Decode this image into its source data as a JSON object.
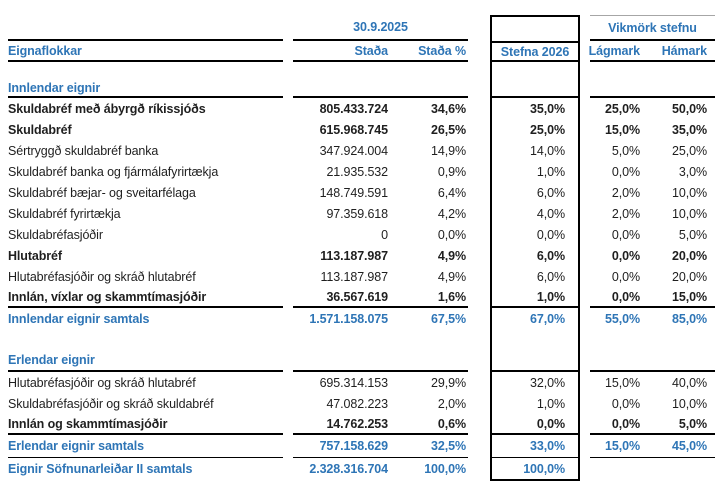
{
  "page": {
    "accent_blue": "#2E75B6",
    "text_color": "#1f1f1f",
    "background": "#ffffff"
  },
  "header": {
    "date_group": "30.9.2025",
    "vikmork_group": "Vikmörk stefnu",
    "col_eignaflokkar": "Eignaflokkar",
    "col_stada": "Staða",
    "col_stada_pct": "Staða %",
    "col_stefna": "Stefna 2026",
    "col_lagmark": "Lágmark",
    "col_hamark": "Hámark"
  },
  "sections": {
    "domestic_label": "Innlendar eignir",
    "foreign_label": "Erlendar eignir"
  },
  "rows": [
    {
      "label": "Skuldabréf með ábyrgð ríkissjóðs",
      "stada": "805.433.724",
      "pct": "34,6%",
      "stefna": "35,0%",
      "lagmark": "25,0%",
      "hamark": "50,0%"
    },
    {
      "label": "Skuldabréf",
      "stada": "615.968.745",
      "pct": "26,5%",
      "stefna": "25,0%",
      "lagmark": "15,0%",
      "hamark": "35,0%"
    },
    {
      "label": "Sértryggð skuldabréf banka",
      "stada": "347.924.004",
      "pct": "14,9%",
      "stefna": "14,0%",
      "lagmark": "5,0%",
      "hamark": "25,0%"
    },
    {
      "label": "Skuldabréf banka og fjármálafyrirtækja",
      "stada": "21.935.532",
      "pct": "0,9%",
      "stefna": "1,0%",
      "lagmark": "0,0%",
      "hamark": "3,0%"
    },
    {
      "label": "Skuldabréf bæjar- og sveitarfélaga",
      "stada": "148.749.591",
      "pct": "6,4%",
      "stefna": "6,0%",
      "lagmark": "2,0%",
      "hamark": "10,0%"
    },
    {
      "label": "Skuldabréf fyrirtækja",
      "stada": "97.359.618",
      "pct": "4,2%",
      "stefna": "4,0%",
      "lagmark": "2,0%",
      "hamark": "10,0%"
    },
    {
      "label": "Skuldabréfasjóðir",
      "stada": "0",
      "pct": "0,0%",
      "stefna": "0,0%",
      "lagmark": "0,0%",
      "hamark": "5,0%"
    },
    {
      "label": "Hlutabréf",
      "stada": "113.187.987",
      "pct": "4,9%",
      "stefna": "6,0%",
      "lagmark": "0,0%",
      "hamark": "20,0%"
    },
    {
      "label": "Hlutabréfasjóðir og skráð hlutabréf",
      "stada": "113.187.987",
      "pct": "4,9%",
      "stefna": "6,0%",
      "lagmark": "0,0%",
      "hamark": "20,0%"
    },
    {
      "label": "Innlán, víxlar og skammtímasjóðir",
      "stada": "36.567.619",
      "pct": "1,6%",
      "stefna": "1,0%",
      "lagmark": "0,0%",
      "hamark": "15,0%"
    },
    {
      "label": "Innlendar eignir samtals",
      "stada": "1.571.158.075",
      "pct": "67,5%",
      "stefna": "67,0%",
      "lagmark": "55,0%",
      "hamark": "85,0%"
    },
    {
      "label": "Hlutabréfasjóðir og skráð hlutabréf",
      "stada": "695.314.153",
      "pct": "29,9%",
      "stefna": "32,0%",
      "lagmark": "15,0%",
      "hamark": "40,0%"
    },
    {
      "label": "Skuldabréfasjóðir og skráð skuldabréf",
      "stada": "47.082.223",
      "pct": "2,0%",
      "stefna": "1,0%",
      "lagmark": "0,0%",
      "hamark": "10,0%"
    },
    {
      "label": "Innlán og skammtímasjóðir",
      "stada": "14.762.253",
      "pct": "0,6%",
      "stefna": "0,0%",
      "lagmark": "0,0%",
      "hamark": "5,0%"
    },
    {
      "label": "Erlendar eignir samtals",
      "stada": "757.158.629",
      "pct": "32,5%",
      "stefna": "33,0%",
      "lagmark": "15,0%",
      "hamark": "45,0%"
    },
    {
      "label": "Eignir Söfnunarleiðar II samtals",
      "stada": "2.328.316.704",
      "pct": "100,0%",
      "stefna": "100,0%",
      "lagmark": "",
      "hamark": ""
    }
  ]
}
